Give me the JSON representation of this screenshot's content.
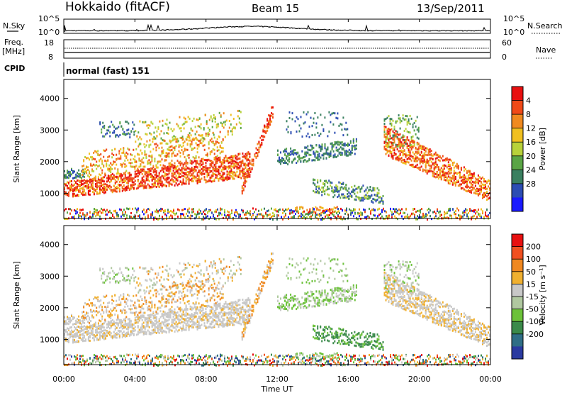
{
  "header": {
    "site": "Hokkaido (fitACF)",
    "beam": "Beam 15",
    "date": "13/Sep/2011"
  },
  "strips": {
    "noise": {
      "left_label": "N.Sky",
      "right_label": "N.Search",
      "ticks": [
        "10^5",
        "10^0"
      ]
    },
    "freq": {
      "left_label_1": "Freq.",
      "left_label_2": "[MHz]",
      "left_ticks": [
        "18",
        "8"
      ],
      "right_label": "Nave",
      "right_ticks": [
        "60",
        "0"
      ]
    },
    "cpid": {
      "label": "CPID",
      "value": "normal (fast) 151"
    }
  },
  "chart_data": [
    {
      "type": "heatmap",
      "name": "power",
      "ylabel": "Slant Range [km]",
      "y_ticks": [
        "1000",
        "2000",
        "3000",
        "4000"
      ],
      "ylim": [
        200,
        4600
      ],
      "xlim": [
        0,
        24
      ],
      "colorbar": {
        "label": "Power [dB]",
        "ticks": [
          "4",
          "8",
          "12",
          "16",
          "20",
          "24",
          "28"
        ],
        "colors": [
          "#1a1aff",
          "#2c4db3",
          "#3a8060",
          "#5aa545",
          "#b8d23a",
          "#f0c020",
          "#f08a20",
          "#f04a18",
          "#e81010"
        ]
      }
    },
    {
      "type": "heatmap",
      "name": "velocity",
      "ylabel": "Slant Range [km]",
      "y_ticks": [
        "1000",
        "2000",
        "3000",
        "4000"
      ],
      "ylim": [
        200,
        4600
      ],
      "xlim": [
        0,
        24
      ],
      "colorbar": {
        "label": "Velocity [m s⁻¹]",
        "ticks": [
          "200",
          "100",
          "50",
          "15",
          "-15",
          "-50",
          "-100",
          "-200"
        ],
        "colors": [
          "#2a3aa0",
          "#2f6e86",
          "#3a8a4a",
          "#6cc23a",
          "#b0c8a0",
          "#c8c8c8",
          "#f0b030",
          "#f08820",
          "#f05020",
          "#e81010"
        ]
      }
    }
  ],
  "xaxis": {
    "label": "Time UT",
    "ticks": [
      "00:00",
      "04:00",
      "08:00",
      "12:00",
      "16:00",
      "20:00",
      "00:00"
    ]
  }
}
